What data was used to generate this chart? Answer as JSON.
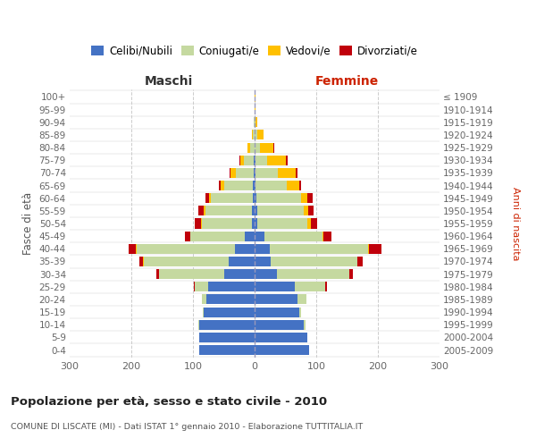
{
  "age_groups": [
    "100+",
    "95-99",
    "90-94",
    "85-89",
    "80-84",
    "75-79",
    "70-74",
    "65-69",
    "60-64",
    "55-59",
    "50-54",
    "45-49",
    "40-44",
    "35-39",
    "30-34",
    "25-29",
    "20-24",
    "15-19",
    "10-14",
    "5-9",
    "0-4"
  ],
  "birth_years": [
    "≤ 1909",
    "1910-1914",
    "1915-1919",
    "1920-1924",
    "1925-1929",
    "1930-1934",
    "1935-1939",
    "1940-1944",
    "1945-1949",
    "1950-1954",
    "1955-1959",
    "1960-1964",
    "1965-1969",
    "1970-1974",
    "1975-1979",
    "1980-1984",
    "1985-1989",
    "1990-1994",
    "1995-1999",
    "2000-2004",
    "2005-2009"
  ],
  "male": {
    "celibi": [
      0,
      0,
      0,
      0,
      0,
      1,
      2,
      3,
      3,
      4,
      5,
      16,
      32,
      42,
      50,
      75,
      78,
      82,
      90,
      90,
      90
    ],
    "coniugati": [
      0,
      0,
      1,
      3,
      7,
      16,
      28,
      46,
      68,
      76,
      80,
      88,
      160,
      138,
      105,
      22,
      8,
      2,
      1,
      0,
      0
    ],
    "vedovi": [
      0,
      0,
      0,
      2,
      4,
      6,
      9,
      6,
      3,
      2,
      2,
      1,
      1,
      1,
      0,
      0,
      0,
      0,
      0,
      0,
      0
    ],
    "divorziati": [
      0,
      0,
      0,
      0,
      1,
      2,
      2,
      3,
      5,
      9,
      10,
      8,
      12,
      6,
      5,
      2,
      0,
      0,
      0,
      0,
      0
    ]
  },
  "female": {
    "nubili": [
      0,
      0,
      0,
      0,
      0,
      1,
      1,
      2,
      3,
      4,
      4,
      16,
      24,
      26,
      36,
      65,
      70,
      72,
      80,
      85,
      88
    ],
    "coniugate": [
      0,
      0,
      1,
      4,
      9,
      20,
      36,
      50,
      72,
      76,
      82,
      94,
      160,
      140,
      118,
      50,
      14,
      4,
      2,
      1,
      0
    ],
    "vedove": [
      2,
      1,
      3,
      10,
      22,
      30,
      30,
      20,
      11,
      7,
      5,
      2,
      2,
      1,
      0,
      0,
      0,
      0,
      0,
      0,
      0
    ],
    "divorziate": [
      0,
      0,
      0,
      1,
      1,
      2,
      3,
      3,
      8,
      8,
      10,
      12,
      20,
      8,
      5,
      2,
      0,
      0,
      0,
      0,
      0
    ]
  },
  "colors": {
    "celibi": "#4472c4",
    "coniugati": "#c5d9a0",
    "vedovi": "#ffc000",
    "divorziati": "#c0000b"
  },
  "title": "Popolazione per età, sesso e stato civile - 2010",
  "subtitle": "COMUNE DI LISCATE (MI) - Dati ISTAT 1° gennaio 2010 - Elaborazione TUTTITALIA.IT",
  "ylabel_left": "Fasce di età",
  "ylabel_right": "Anni di nascita",
  "label_maschi": "Maschi",
  "label_femmine": "Femmine",
  "legend": [
    "Celibi/Nubili",
    "Coniugati/e",
    "Vedovi/e",
    "Divorziati/e"
  ],
  "xlim": 300,
  "bg_color": "#ffffff",
  "grid_color": "#cccccc",
  "maschi_color": "#333333",
  "femmine_color": "#cc2200"
}
